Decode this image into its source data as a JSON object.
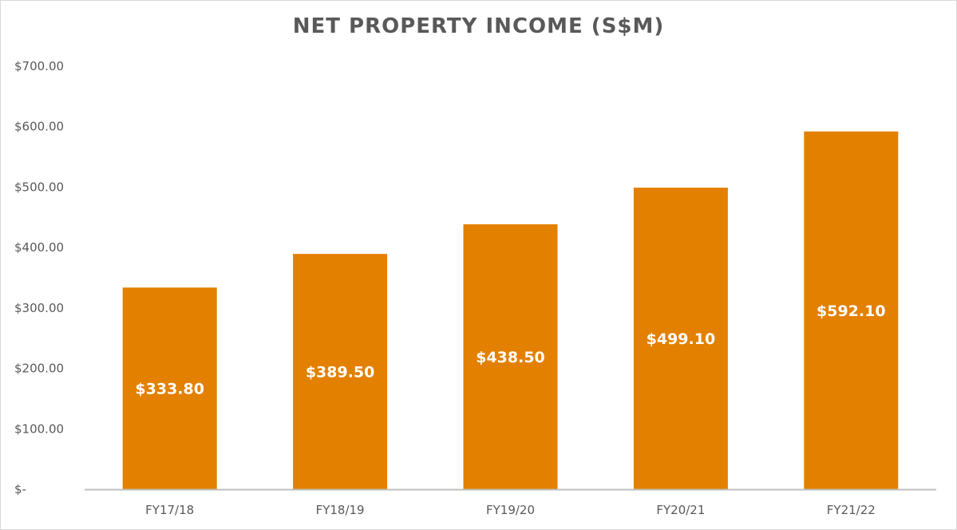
{
  "chart_data": {
    "type": "bar",
    "title": "NET PROPERTY INCOME (S$M)",
    "categories": [
      "FY17/18",
      "FY18/19",
      "FY19/20",
      "FY20/21",
      "FY21/22"
    ],
    "values": [
      333.8,
      389.5,
      438.5,
      499.1,
      592.1
    ],
    "data_labels": [
      "$333.80",
      "$389.50",
      "$438.50",
      "$499.10",
      "$592.10"
    ],
    "y_ticks": [
      0,
      100,
      200,
      300,
      400,
      500,
      600,
      700
    ],
    "y_tick_labels": [
      "$-",
      "$100.00",
      "$200.00",
      "$300.00",
      "$400.00",
      "$500.00",
      "$600.00",
      "$700.00"
    ],
    "ylim": [
      0,
      700
    ],
    "xlabel": "",
    "ylabel": "",
    "grid": false,
    "legend": "none",
    "bar_color": "#E38000"
  }
}
